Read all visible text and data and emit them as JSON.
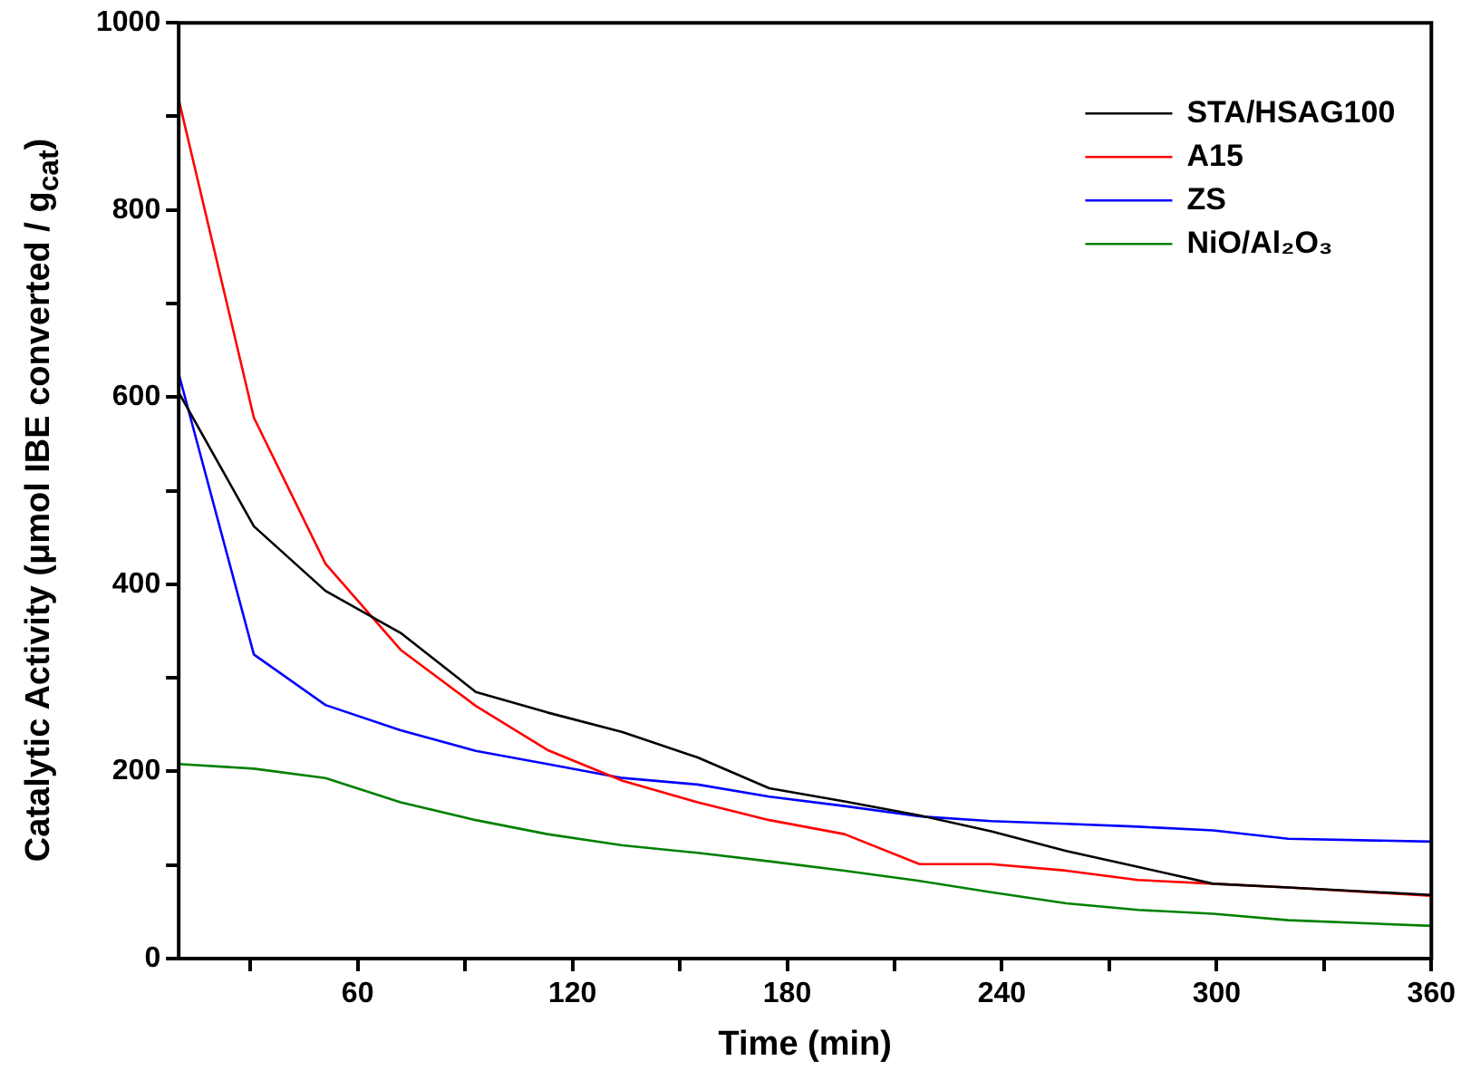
{
  "chart_data": {
    "type": "line",
    "xlabel": "Time (min)",
    "ylabel": "Catalytic Activity (μmol IBE converted / g$_{cat}$)",
    "x": [
      10,
      31,
      51,
      72,
      93,
      113,
      134,
      155,
      175,
      196,
      217,
      237,
      258,
      278,
      299,
      320,
      360
    ],
    "xlim": [
      10,
      360
    ],
    "xticks": [
      {
        "value": 30,
        "label": null
      },
      60,
      {
        "value": 90,
        "label": null
      },
      120,
      {
        "value": 150,
        "label": null
      },
      180,
      {
        "value": 210,
        "label": null
      },
      240,
      {
        "value": 270,
        "label": null
      },
      300,
      {
        "value": 330,
        "label": null
      },
      360
    ],
    "ylim": [
      0,
      1000
    ],
    "yticks": [
      0,
      {
        "value": 100,
        "label": null
      },
      200,
      {
        "value": 300,
        "label": null
      },
      400,
      {
        "value": 500,
        "label": null
      },
      600,
      {
        "value": 700,
        "label": null
      },
      800,
      {
        "value": 900,
        "label": null
      },
      1000
    ],
    "grid": false,
    "legend": "top right",
    "marker": "none",
    "line_style": "solid",
    "series": [
      {
        "name": "STA/HSAG100",
        "color": "#000000",
        "values": [
          605,
          462,
          393,
          348,
          285,
          263,
          242,
          215,
          182,
          168,
          153,
          136,
          115,
          98,
          80,
          76,
          68
        ]
      },
      {
        "name": "A15",
        "color": "#ff0000",
        "values": [
          918,
          578,
          422,
          330,
          270,
          223,
          190,
          167,
          148,
          133,
          101,
          101,
          94,
          84,
          80,
          76,
          67
        ]
      },
      {
        "name": "ZS",
        "color": "#0000ff",
        "values": [
          625,
          325,
          271,
          244,
          222,
          208,
          193,
          186,
          173,
          163,
          152,
          147,
          144,
          141,
          137,
          128,
          125
        ]
      },
      {
        "name": "NiO/Al₂O₃",
        "color": "#008000",
        "values": [
          208,
          203,
          193,
          167,
          148,
          133,
          121,
          113,
          104,
          94,
          83,
          71,
          59,
          52,
          48,
          41,
          35
        ]
      }
    ]
  }
}
